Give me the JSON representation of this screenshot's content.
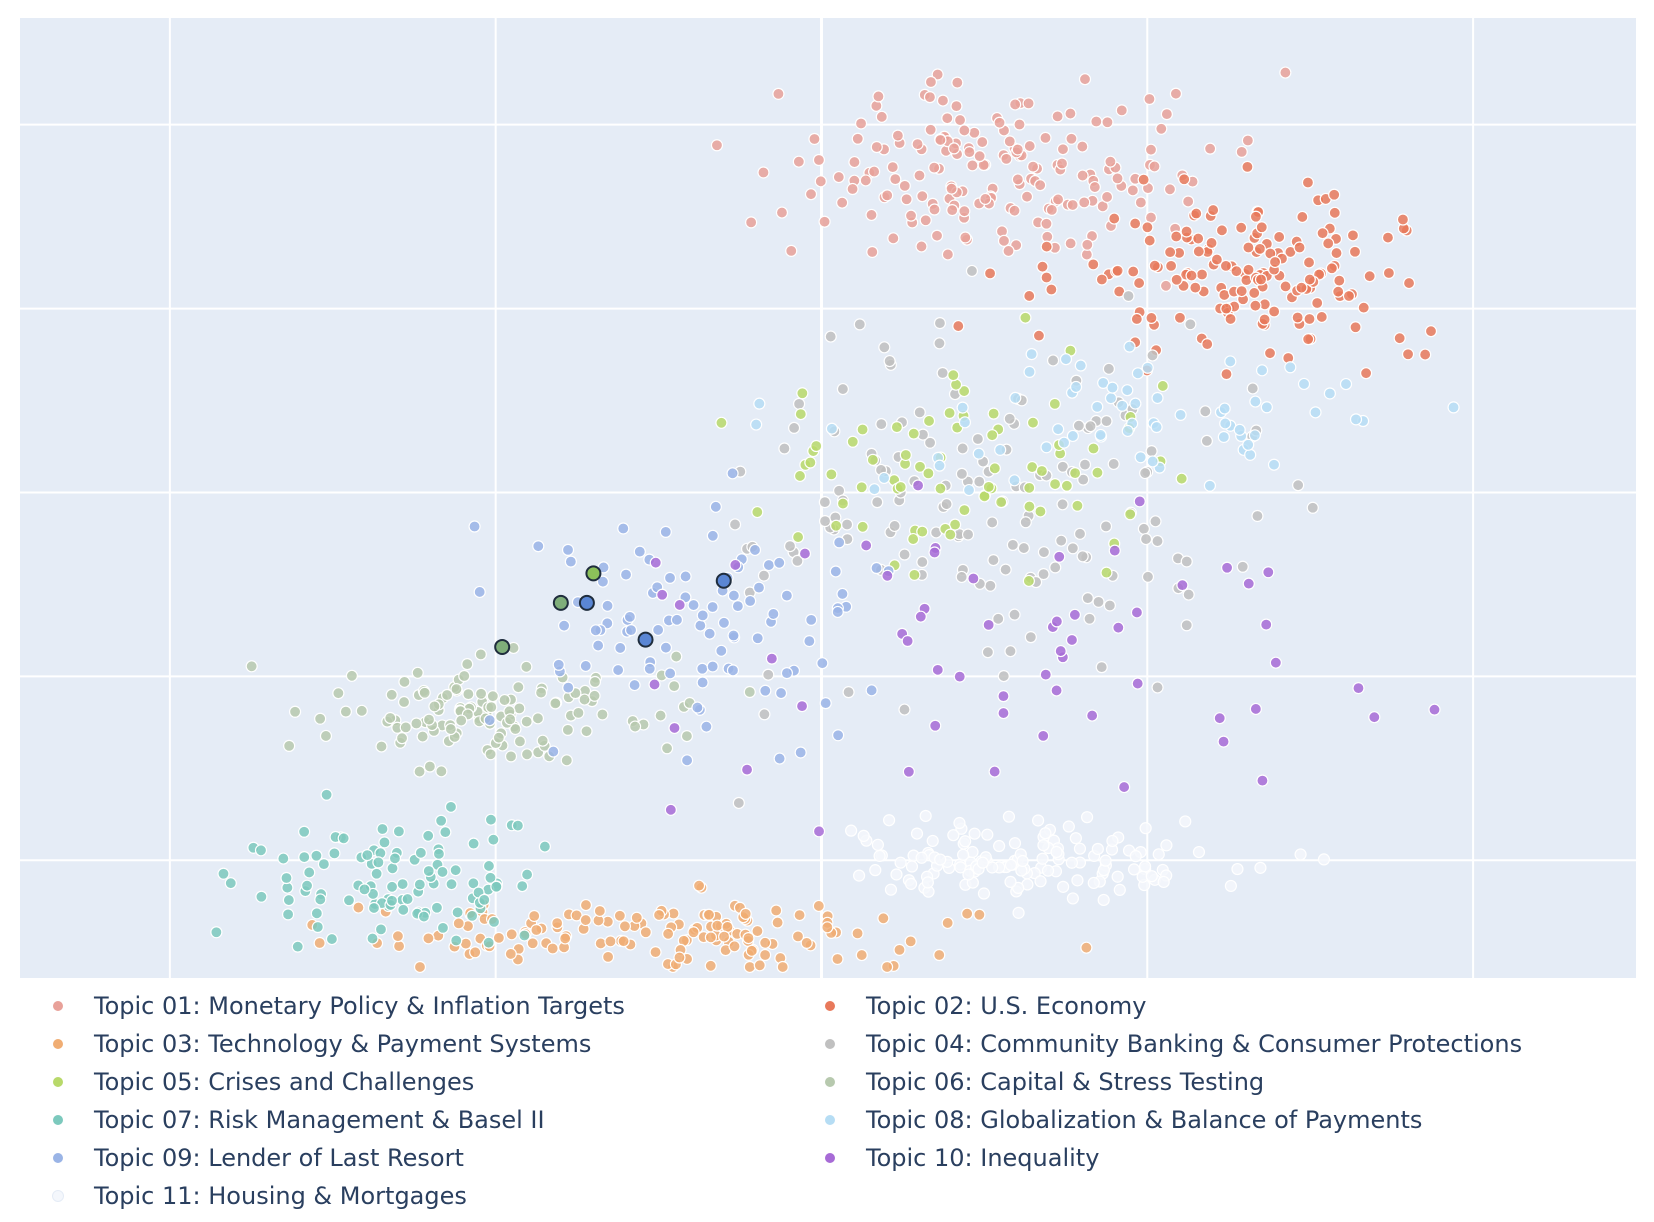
{
  "chart_data": {
    "type": "scatter",
    "title": "",
    "xlabel": "",
    "ylabel": "",
    "xlim": [
      -12.3,
      12.5
    ],
    "ylim": [
      -10.7,
      15.4
    ],
    "x_gridlines": [
      -10,
      -5,
      0,
      5,
      10
    ],
    "y_gridlines": [
      -7.5,
      -2.5,
      2.5,
      7.5,
      12.5
    ],
    "grid": true,
    "plot_bgcolor": "#e5ecf6",
    "tick_labels_shown": false,
    "legend_position": "bottom",
    "legend_columns": 2,
    "series": [
      {
        "name": "Topic 01: Monetary Policy & Inflation Targets",
        "color": "#e8a199",
        "cluster": {
          "cx": 3.0,
          "cy": 11.0,
          "sx": 3.0,
          "sy": 2.0,
          "n": 190
        }
      },
      {
        "name": "Topic 02: U.S. Economy",
        "color": "#e8795b",
        "cluster": {
          "cx": 6.5,
          "cy": 8.5,
          "sx": 2.5,
          "sy": 2.0,
          "n": 170
        }
      },
      {
        "name": "Topic 03: Technology & Payment Systems",
        "color": "#f0ad73",
        "cluster": {
          "cx": -2.5,
          "cy": -9.5,
          "sx": 3.8,
          "sy": 0.8,
          "n": 150
        }
      },
      {
        "name": "Topic 04: Community Banking & Consumer Protections",
        "color": "#c0c0c0",
        "cluster": {
          "cx": 3.0,
          "cy": 2.0,
          "sx": 3.5,
          "sy": 4.0,
          "n": 160
        }
      },
      {
        "name": "Topic 05: Crises and Challenges",
        "color": "#b8d96a",
        "cluster": {
          "cx": 2.0,
          "cy": 3.0,
          "sx": 3.0,
          "sy": 2.5,
          "n": 80
        }
      },
      {
        "name": "Topic 06: Capital & Stress Testing",
        "color": "#b7c9ae",
        "cluster": {
          "cx": -5.0,
          "cy": -3.5,
          "sx": 2.4,
          "sy": 1.2,
          "n": 130
        }
      },
      {
        "name": "Topic 07: Risk Management & Basel II",
        "color": "#7cc9bd",
        "cluster": {
          "cx": -6.5,
          "cy": -8.0,
          "sx": 1.8,
          "sy": 1.3,
          "n": 110
        }
      },
      {
        "name": "Topic 08: Globalization & Balance of Payments",
        "color": "#b6ddf4",
        "cluster": {
          "cx": 5.0,
          "cy": 4.5,
          "sx": 3.5,
          "sy": 1.5,
          "n": 70
        }
      },
      {
        "name": "Topic 09: Lender of Last Resort",
        "color": "#9ab4e6",
        "cluster": {
          "cx": -2.0,
          "cy": -1.0,
          "sx": 2.5,
          "sy": 2.5,
          "n": 100
        }
      },
      {
        "name": "Topic 10: Inequality",
        "color": "#a76bd6",
        "cluster": {
          "cx": 3.0,
          "cy": -2.0,
          "sx": 5.0,
          "sy": 4.0,
          "n": 60
        }
      },
      {
        "name": "Topic 11: Housing & Mortgages",
        "color": "#f4f7fc",
        "cluster": {
          "cx": 3.5,
          "cy": -7.5,
          "sx": 2.5,
          "sy": 1.0,
          "n": 140
        }
      }
    ],
    "highlighted_points": [
      {
        "x": -3.5,
        "y": 0.3,
        "color": "#8bc05a"
      },
      {
        "x": -4.0,
        "y": -0.5,
        "color": "#7fae7a"
      },
      {
        "x": -4.9,
        "y": -1.7,
        "color": "#7fae7a"
      },
      {
        "x": -3.6,
        "y": -0.5,
        "color": "#5a86d4"
      },
      {
        "x": -2.7,
        "y": -1.5,
        "color": "#5a86d4"
      },
      {
        "x": -1.5,
        "y": 0.1,
        "color": "#5a86d4"
      }
    ]
  }
}
